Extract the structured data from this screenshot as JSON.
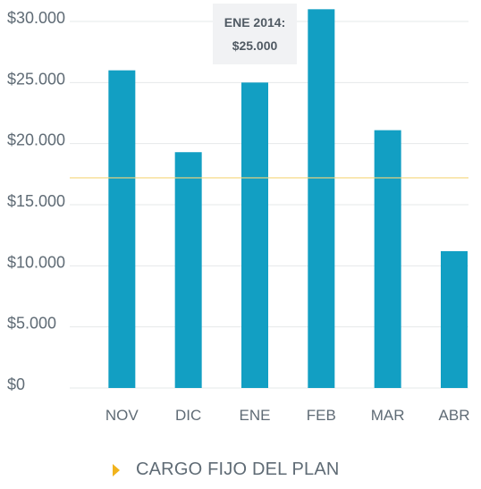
{
  "chart_data": {
    "type": "bar",
    "categories": [
      "NOV",
      "DIC",
      "ENE",
      "FEB",
      "MAR",
      "ABR"
    ],
    "values": [
      26000,
      19300,
      25000,
      31000,
      21100,
      11200
    ],
    "ylim": [
      0,
      30000
    ],
    "ytick_values": [
      0,
      5000,
      10000,
      15000,
      20000,
      25000,
      30000
    ],
    "ytick_labels": [
      "$0",
      "$5.000",
      "$10.000",
      "$15.000",
      "$20.000",
      "$25.000",
      "$30.000"
    ],
    "reference_line": 17200,
    "grid": true,
    "bar_color": "#129fc3",
    "reference_line_color": "#f5d57a",
    "tooltip": {
      "category_index": 2,
      "title": "ENE 2014:",
      "value": "$25.000"
    },
    "legend": {
      "label": "CARGO FIJO DEL PLAN",
      "marker_color": "#f1b31c",
      "placement": "bottom"
    }
  }
}
